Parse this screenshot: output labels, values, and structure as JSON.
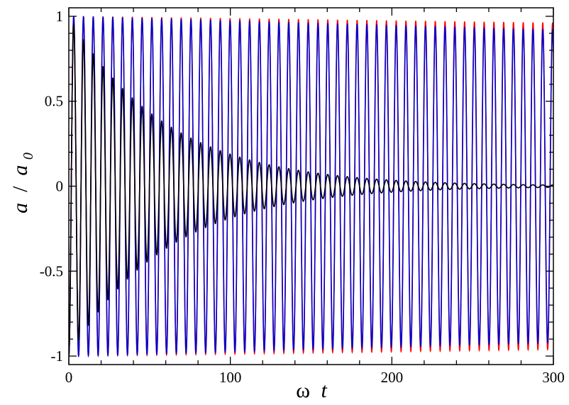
{
  "chart_data": {
    "type": "line",
    "title": "",
    "xlabel": {
      "main": "ω",
      "italic": "t"
    },
    "ylabel": {
      "a": "a",
      "slash": " / ",
      "a0": "a",
      "sub": "0"
    },
    "xlim": [
      0,
      300
    ],
    "ylim": [
      -1.05,
      1.05
    ],
    "xticks": [
      0,
      100,
      200,
      300
    ],
    "xtick_labels": [
      "0",
      "100",
      "200",
      "300"
    ],
    "yticks": [
      -1,
      -0.5,
      0,
      0.5,
      1
    ],
    "ytick_labels": [
      "-1",
      "-0.5",
      "0",
      "0.5",
      "1"
    ],
    "grid": false,
    "legend": "none",
    "x_minor_step": 20,
    "y_minor_step": 0.1,
    "series": [
      {
        "color": "#ff0000",
        "period": 6.05,
        "amp_start": 1.0,
        "amp_end": 0.96,
        "decay_time": 0,
        "x_start": 0,
        "x_end": 300,
        "phase": 3.14159
      },
      {
        "color": "#0000cc",
        "period": 6.05,
        "amp_start": 1.0,
        "amp_end": 0.92,
        "decay_time": 0,
        "x_start": 0,
        "x_end": 300,
        "phase": 3.14159
      },
      {
        "color": "#000000",
        "period": 6.05,
        "amp_start": 1.0,
        "amp_end": 0.0,
        "decay_time": 60,
        "x_start": 0,
        "x_end": 300,
        "phase": 3.14159
      }
    ]
  }
}
